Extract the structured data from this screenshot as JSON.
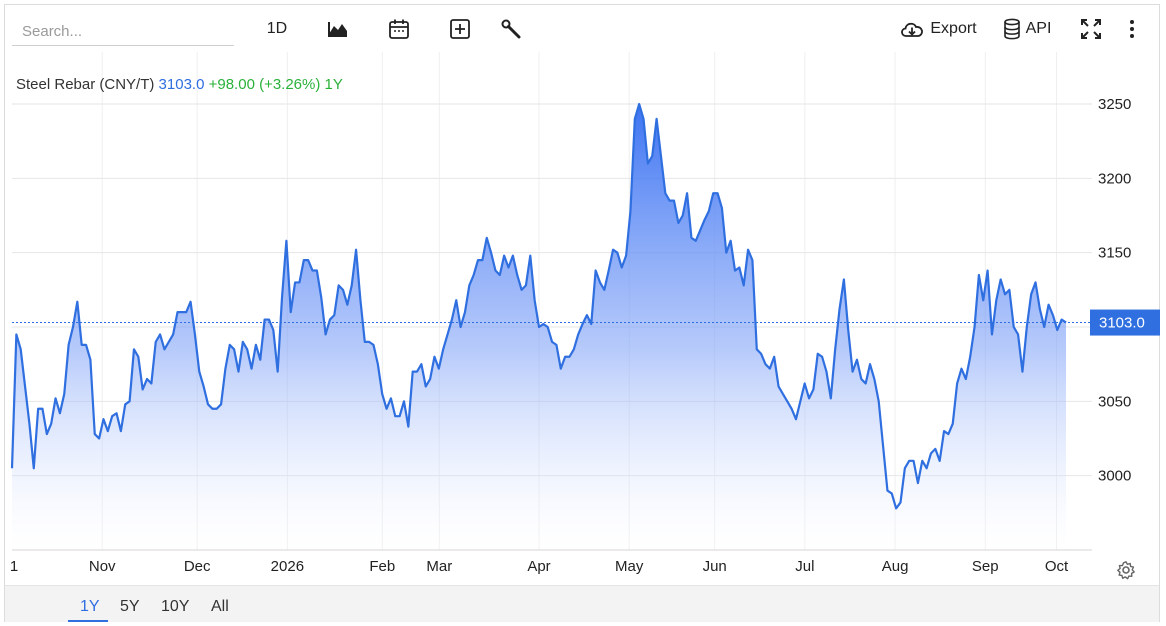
{
  "toolbar": {
    "search_placeholder": "Search...",
    "interval_label": "1D",
    "export_label": "Export",
    "api_label": "API"
  },
  "range_buttons": [
    "1Y",
    "5Y",
    "10Y",
    "All"
  ],
  "range_active": "1Y",
  "legend": {
    "name": "Steel Rebar (CNY/T)",
    "price": "3103.0",
    "change": "+98.00 (+3.26%)",
    "period": "1Y"
  },
  "colors": {
    "line": "#2f6fe0",
    "area_top": "#3d74f2",
    "up": "#2ab13a",
    "label_bg": "#2f6fe0"
  },
  "chart_data": {
    "type": "area",
    "title": "",
    "xlabel": "",
    "ylabel": "",
    "ylim": [
      2950,
      3285
    ],
    "y_ticks": [
      3000,
      3050,
      3100,
      3150,
      3200,
      3250
    ],
    "y_tick_labels": [
      "3000",
      "3050",
      "3150",
      "3200",
      "3250"
    ],
    "x_tick_labels": [
      "1",
      "Nov",
      "Dec",
      "2026",
      "Feb",
      "Mar",
      "Apr",
      "May",
      "Jun",
      "Jul",
      "Aug",
      "Sep",
      "Oct"
    ],
    "x_tick_positions": [
      0,
      19,
      39,
      58,
      78,
      90,
      111,
      130,
      148,
      167,
      186,
      205,
      220
    ],
    "x_range": [
      0,
      222
    ],
    "last_value": 3103.0,
    "last_value_label": "3103.0",
    "series": [
      {
        "values": [
          3005,
          3095,
          3085,
          3060,
          3035,
          3005,
          3045,
          3045,
          3028,
          3035,
          3052,
          3042,
          3055,
          3088,
          3100,
          3117,
          3088,
          3088,
          3078,
          3028,
          3025,
          3038,
          3030,
          3040,
          3042,
          3030,
          3048,
          3050,
          3085,
          3080,
          3058,
          3065,
          3062,
          3090,
          3095,
          3085,
          3090,
          3095,
          3110,
          3110,
          3110,
          3117,
          3095,
          3070,
          3060,
          3048,
          3045,
          3045,
          3048,
          3072,
          3088,
          3085,
          3070,
          3090,
          3085,
          3072,
          3088,
          3078,
          3105,
          3105,
          3098,
          3070,
          3120,
          3158,
          3110,
          3130,
          3130,
          3145,
          3145,
          3138,
          3138,
          3120,
          3095,
          3105,
          3108,
          3128,
          3125,
          3115,
          3128,
          3152,
          3118,
          3090,
          3090,
          3088,
          3075,
          3055,
          3045,
          3052,
          3040,
          3040,
          3050,
          3033,
          3070,
          3070,
          3075,
          3060,
          3065,
          3080,
          3072,
          3085,
          3095,
          3105,
          3118,
          3100,
          3110,
          3128,
          3135,
          3145,
          3145,
          3160,
          3150,
          3138,
          3135,
          3148,
          3140,
          3148,
          3135,
          3125,
          3128,
          3148,
          3118,
          3100,
          3102,
          3100,
          3090,
          3088,
          3072,
          3080,
          3080,
          3085,
          3095,
          3102,
          3108,
          3102,
          3138,
          3130,
          3125,
          3138,
          3152,
          3150,
          3140,
          3148,
          3178,
          3240,
          3250,
          3240,
          3210,
          3215,
          3240,
          3215,
          3190,
          3185,
          3185,
          3170,
          3175,
          3190,
          3160,
          3158,
          3165,
          3172,
          3178,
          3190,
          3190,
          3180,
          3150,
          3158,
          3138,
          3140,
          3128,
          3152,
          3145,
          3085,
          3082,
          3075,
          3072,
          3080,
          3060,
          3055,
          3050,
          3045,
          3038,
          3050,
          3062,
          3052,
          3058,
          3082,
          3080,
          3070,
          3052,
          3085,
          3112,
          3132,
          3098,
          3070,
          3078,
          3065,
          3062,
          3075,
          3065,
          3050,
          3020,
          2990,
          2988,
          2978,
          2982,
          3005,
          3010,
          3010,
          2995,
          3010,
          3005,
          3015,
          3018,
          3010,
          3030,
          3028,
          3035,
          3062,
          3072,
          3065,
          3080,
          3100,
          3135,
          3118,
          3138,
          3095,
          3118,
          3132,
          3122,
          3125,
          3100,
          3095,
          3070,
          3100,
          3122,
          3130,
          3112,
          3100,
          3115,
          3108,
          3098,
          3105,
          3103
        ]
      }
    ]
  }
}
